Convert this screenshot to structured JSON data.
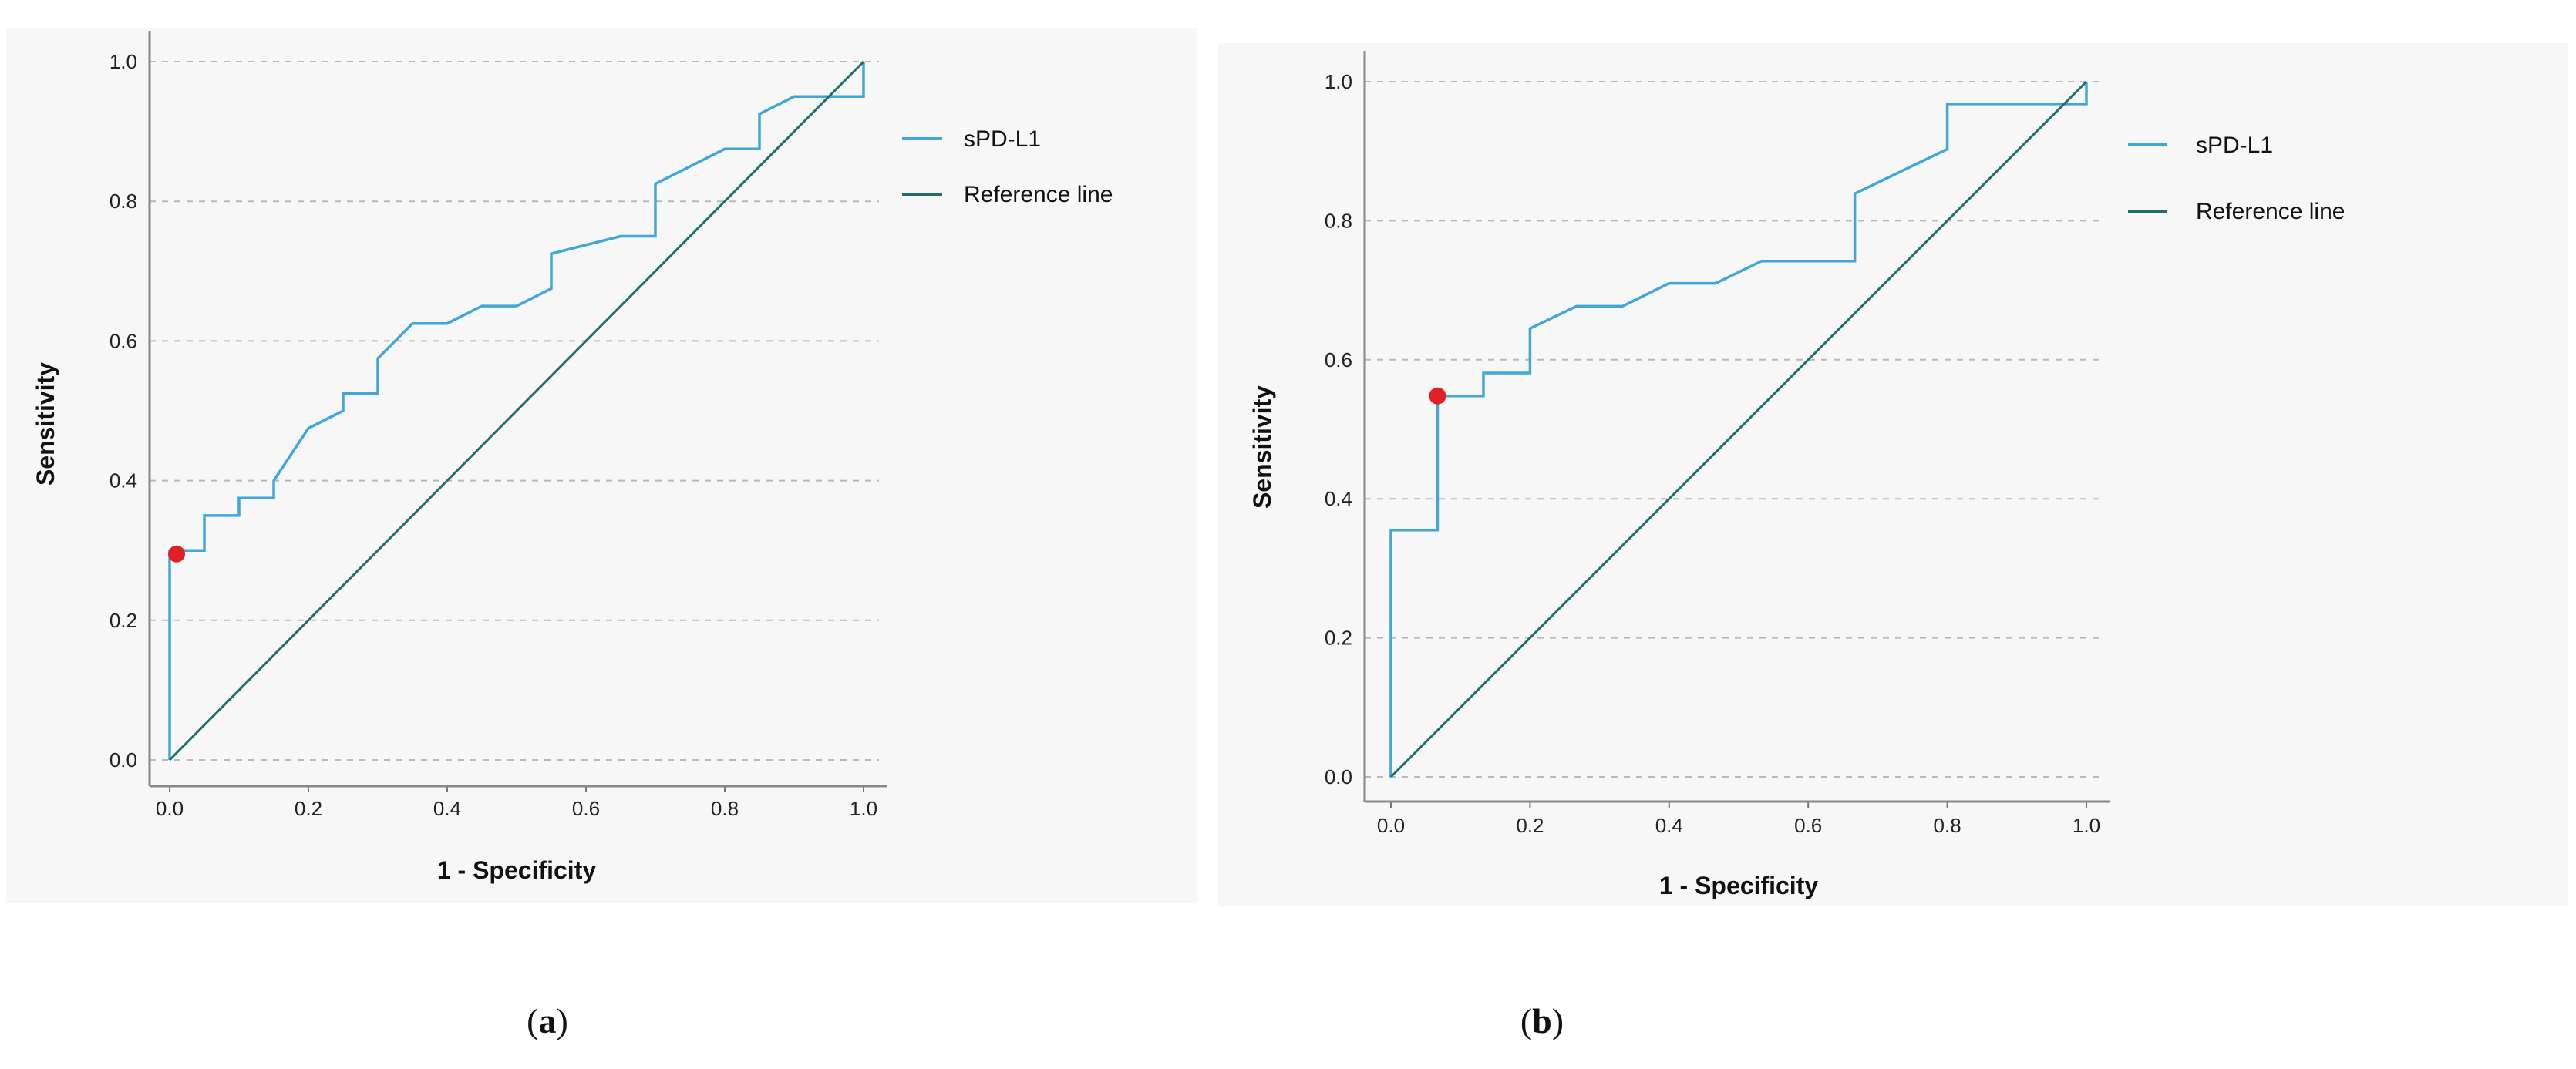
{
  "colors": {
    "curve": "#41a6d8",
    "reference": "#1f6f6c",
    "cutoff": "#e01f26",
    "background": "#f7f7f7",
    "grid": "#b8b8b8"
  },
  "chart_data": [
    {
      "type": "line",
      "panel_label": "a",
      "xlabel": "1 - Specificity",
      "ylabel": "Sensitivity",
      "xlim": [
        0,
        1
      ],
      "ylim": [
        0,
        1
      ],
      "xticks": [
        "0.0",
        "0.2",
        "0.4",
        "0.6",
        "0.8",
        "1.0"
      ],
      "yticks": [
        "0.0",
        "0.2",
        "0.4",
        "0.6",
        "0.8",
        "1.0"
      ],
      "grid": "horizontal dashed",
      "legend_placement": "right",
      "series": [
        {
          "name": "sPD-L1",
          "points": [
            [
              0,
              0
            ],
            [
              0,
              0.3
            ],
            [
              0.05,
              0.3
            ],
            [
              0.05,
              0.35
            ],
            [
              0.1,
              0.35
            ],
            [
              0.1,
              0.375
            ],
            [
              0.15,
              0.375
            ],
            [
              0.15,
              0.4
            ],
            [
              0.2,
              0.475
            ],
            [
              0.25,
              0.5
            ],
            [
              0.25,
              0.525
            ],
            [
              0.3,
              0.525
            ],
            [
              0.3,
              0.575
            ],
            [
              0.35,
              0.625
            ],
            [
              0.4,
              0.625
            ],
            [
              0.45,
              0.65
            ],
            [
              0.5,
              0.65
            ],
            [
              0.55,
              0.675
            ],
            [
              0.55,
              0.725
            ],
            [
              0.65,
              0.75
            ],
            [
              0.7,
              0.75
            ],
            [
              0.7,
              0.825
            ],
            [
              0.8,
              0.875
            ],
            [
              0.85,
              0.875
            ],
            [
              0.85,
              0.925
            ],
            [
              0.9,
              0.95
            ],
            [
              1,
              0.95
            ],
            [
              1,
              1
            ]
          ]
        },
        {
          "name": "Reference line",
          "points": [
            [
              0,
              0
            ],
            [
              1,
              1
            ]
          ]
        }
      ],
      "cutoff_point": [
        0.01,
        0.295
      ]
    },
    {
      "type": "line",
      "panel_label": "b",
      "xlabel": "1 - Specificity",
      "ylabel": "Sensitivity",
      "xlim": [
        0,
        1
      ],
      "ylim": [
        0,
        1
      ],
      "xticks": [
        "0.0",
        "0.2",
        "0.4",
        "0.6",
        "0.8",
        "1.0"
      ],
      "yticks": [
        "0.0",
        "0.2",
        "0.4",
        "0.6",
        "0.8",
        "1.0"
      ],
      "grid": "horizontal dashed",
      "legend_placement": "right",
      "series": [
        {
          "name": "sPD-L1",
          "points": [
            [
              0,
              0
            ],
            [
              0,
              0.355
            ],
            [
              0.067,
              0.355
            ],
            [
              0.067,
              0.548
            ],
            [
              0.133,
              0.548
            ],
            [
              0.133,
              0.581
            ],
            [
              0.2,
              0.581
            ],
            [
              0.2,
              0.645
            ],
            [
              0.267,
              0.677
            ],
            [
              0.333,
              0.677
            ],
            [
              0.4,
              0.71
            ],
            [
              0.467,
              0.71
            ],
            [
              0.533,
              0.742
            ],
            [
              0.667,
              0.742
            ],
            [
              0.667,
              0.839
            ],
            [
              0.8,
              0.903
            ],
            [
              0.8,
              0.968
            ],
            [
              1,
              0.968
            ],
            [
              1,
              1
            ]
          ]
        },
        {
          "name": "Reference line",
          "points": [
            [
              0,
              0
            ],
            [
              1,
              1
            ]
          ]
        }
      ],
      "cutoff_point": [
        0.067,
        0.548
      ]
    }
  ]
}
